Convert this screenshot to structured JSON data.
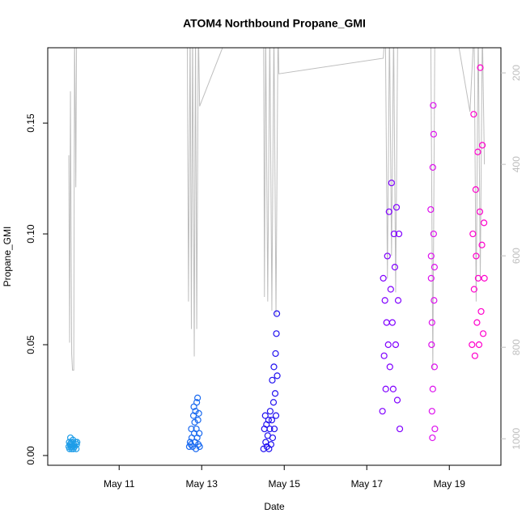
{
  "chart_data": {
    "type": "scatter",
    "title": "ATOM4 Northbound Propane_GMI",
    "x_label": "Date",
    "y_label": "Propane_GMI",
    "xlim": [
      9.27,
      20.25
    ],
    "xticks": [
      {
        "value": 11,
        "label": "May 11"
      },
      {
        "value": 13,
        "label": "May 13"
      },
      {
        "value": 15,
        "label": "May 15"
      },
      {
        "value": 17,
        "label": "May 17"
      },
      {
        "value": 19,
        "label": "May 19"
      }
    ],
    "ylim": [
      -0.0044,
      0.184
    ],
    "yticks": [
      {
        "value": 0,
        "label": "0.00"
      },
      {
        "value": 0.05,
        "label": "0.05"
      },
      {
        "value": 0.1,
        "label": "0.10"
      },
      {
        "value": 0.15,
        "label": "0.15"
      }
    ],
    "y2lim": [
      1058,
      145
    ],
    "y2ticks": [
      200,
      400,
      600,
      800,
      1000
    ],
    "series": [
      {
        "type": "points",
        "color": "#1e9de8",
        "x": [
          9.78,
          9.79,
          9.8,
          9.81,
          9.82,
          9.83,
          9.84,
          9.85,
          9.86,
          9.87,
          9.88,
          9.89,
          9.9,
          9.92,
          9.94,
          9.96,
          9.97,
          9.98
        ],
        "values": [
          0.004,
          0.006,
          0.003,
          0.005,
          0.008,
          0.004,
          0.006,
          0.003,
          0.005,
          0.004,
          0.007,
          0.003,
          0.005,
          0.004,
          0.006,
          0.003,
          0.005,
          0.006
        ]
      },
      {
        "type": "points",
        "color": "#1a6af0",
        "x": [
          12.7,
          12.72,
          12.74,
          12.75,
          12.76,
          12.78,
          12.8,
          12.81,
          12.82,
          12.83,
          12.84,
          12.85,
          12.86,
          12.87,
          12.88,
          12.89,
          12.9,
          12.91,
          12.92,
          12.93,
          12.94,
          12.95
        ],
        "values": [
          0.004,
          0.006,
          0.005,
          0.012,
          0.008,
          0.004,
          0.018,
          0.022,
          0.01,
          0.015,
          0.006,
          0.02,
          0.003,
          0.012,
          0.024,
          0.008,
          0.026,
          0.016,
          0.005,
          0.019,
          0.01,
          0.004
        ]
      },
      {
        "type": "points",
        "color": "#2010f0",
        "x": [
          14.5,
          14.52,
          14.54,
          14.55,
          14.57,
          14.58,
          14.6,
          14.62,
          14.63,
          14.65,
          14.66,
          14.68,
          14.7,
          14.71,
          14.72,
          14.74,
          14.75,
          14.76,
          14.78,
          14.79,
          14.8,
          14.81,
          14.82,
          14.83
        ],
        "values": [
          0.003,
          0.012,
          0.018,
          0.006,
          0.014,
          0.004,
          0.009,
          0.016,
          0.003,
          0.012,
          0.02,
          0.005,
          0.016,
          0.034,
          0.008,
          0.024,
          0.04,
          0.012,
          0.028,
          0.046,
          0.018,
          0.055,
          0.064,
          0.036
        ]
      },
      {
        "type": "points",
        "color": "#8000ff",
        "x": [
          17.38,
          17.4,
          17.42,
          17.44,
          17.46,
          17.48,
          17.5,
          17.52,
          17.54,
          17.56,
          17.58,
          17.6,
          17.62,
          17.64,
          17.66,
          17.68,
          17.7,
          17.72,
          17.74,
          17.76,
          17.78,
          17.8
        ],
        "values": [
          0.02,
          0.08,
          0.045,
          0.07,
          0.03,
          0.06,
          0.09,
          0.05,
          0.11,
          0.04,
          0.075,
          0.123,
          0.06,
          0.03,
          0.1,
          0.085,
          0.05,
          0.112,
          0.025,
          0.07,
          0.1,
          0.012
        ]
      },
      {
        "type": "points",
        "color": "#dd11ee",
        "x": [
          18.55,
          18.56,
          18.57,
          18.58,
          18.59,
          18.6,
          18.61,
          18.62,
          18.63,
          18.64,
          18.65,
          18.56,
          18.58,
          18.6,
          18.62,
          18.64
        ],
        "values": [
          0.111,
          0.08,
          0.05,
          0.02,
          0.008,
          0.13,
          0.158,
          0.1,
          0.07,
          0.04,
          0.012,
          0.09,
          0.06,
          0.03,
          0.145,
          0.085
        ]
      },
      {
        "type": "points",
        "color": "#ff00cc",
        "x": [
          19.55,
          19.57,
          19.59,
          19.6,
          19.62,
          19.64,
          19.65,
          19.67,
          19.69,
          19.7,
          19.72,
          19.74,
          19.75,
          19.77,
          19.79,
          19.8,
          19.82,
          19.84,
          19.85
        ],
        "values": [
          0.05,
          0.1,
          0.154,
          0.075,
          0.045,
          0.12,
          0.09,
          0.06,
          0.137,
          0.08,
          0.05,
          0.11,
          0.175,
          0.065,
          0.095,
          0.14,
          0.055,
          0.105,
          0.08
        ]
      },
      {
        "type": "line",
        "axis": "y2",
        "color": "#bebebe",
        "x": [
          9.78,
          9.8,
          9.82,
          9.85,
          9.87,
          9.9,
          9.92,
          9.95,
          9.97,
          12.65,
          12.68,
          12.72,
          12.75,
          12.78,
          12.82,
          12.85,
          12.88,
          12.92,
          12.95,
          13.7,
          14.5,
          14.52,
          14.55,
          14.6,
          14.65,
          14.7,
          14.75,
          14.8,
          14.85,
          14.87,
          17.4,
          17.45,
          17.5,
          17.55,
          17.6,
          17.65,
          17.7,
          17.75,
          18.55,
          18.6,
          18.65,
          19.15,
          19.5,
          19.6,
          19.65,
          19.7,
          19.75,
          19.8,
          19.85
        ],
        "values": [
          380,
          790,
          240,
          815,
          850,
          850,
          100,
          450,
          100,
          100,
          700,
          100,
          760,
          100,
          820,
          100,
          760,
          100,
          273,
          100,
          100,
          690,
          100,
          700,
          100,
          720,
          100,
          730,
          100,
          202,
          168,
          100,
          650,
          100,
          600,
          100,
          680,
          100,
          100,
          850,
          100,
          100,
          285,
          100,
          700,
          100,
          650,
          100,
          400
        ]
      }
    ]
  }
}
